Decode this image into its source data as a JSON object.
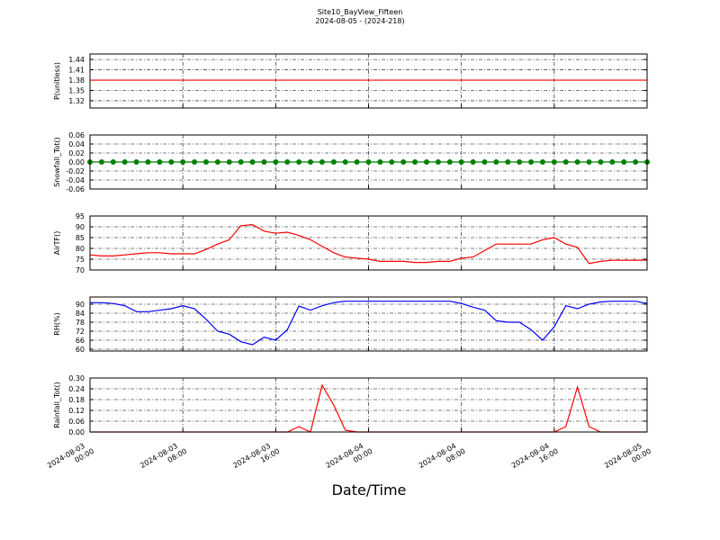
{
  "chart_data": {
    "type": "line",
    "title": "Site10_BayView_Fifteen",
    "subtitle": "2024-08-05 - (2024-218)",
    "xlabel": "Date/Time",
    "grid": true,
    "x": [
      "2024-08-03 00:00",
      "2024-08-03 01:00",
      "2024-08-03 02:00",
      "2024-08-03 03:00",
      "2024-08-03 04:00",
      "2024-08-03 05:00",
      "2024-08-03 06:00",
      "2024-08-03 07:00",
      "2024-08-03 08:00",
      "2024-08-03 09:00",
      "2024-08-03 10:00",
      "2024-08-03 11:00",
      "2024-08-03 12:00",
      "2024-08-03 13:00",
      "2024-08-03 14:00",
      "2024-08-03 15:00",
      "2024-08-03 16:00",
      "2024-08-03 17:00",
      "2024-08-03 18:00",
      "2024-08-03 19:00",
      "2024-08-03 20:00",
      "2024-08-03 21:00",
      "2024-08-03 22:00",
      "2024-08-03 23:00",
      "2024-08-04 00:00",
      "2024-08-04 01:00",
      "2024-08-04 02:00",
      "2024-08-04 03:00",
      "2024-08-04 04:00",
      "2024-08-04 05:00",
      "2024-08-04 06:00",
      "2024-08-04 07:00",
      "2024-08-04 08:00",
      "2024-08-04 09:00",
      "2024-08-04 10:00",
      "2024-08-04 11:00",
      "2024-08-04 12:00",
      "2024-08-04 13:00",
      "2024-08-04 14:00",
      "2024-08-04 15:00",
      "2024-08-04 16:00",
      "2024-08-04 17:00",
      "2024-08-04 18:00",
      "2024-08-04 19:00",
      "2024-08-04 20:00",
      "2024-08-04 21:00",
      "2024-08-04 22:00",
      "2024-08-04 23:00",
      "2024-08-05 00:00"
    ],
    "xlim": [
      "2024-08-03 00:00",
      "2024-08-05 00:00"
    ],
    "xticks": [
      "2024-08-03 00:00",
      "2024-08-03 08:00",
      "2024-08-03 16:00",
      "2024-08-04 00:00",
      "2024-08-04 08:00",
      "2024-08-04 16:00",
      "2024-08-05 00:00"
    ],
    "panels": [
      {
        "ylabel": "P(unitless)",
        "ylim": [
          1.299,
          1.456
        ],
        "yticks": [
          1.32,
          1.35,
          1.38,
          1.41,
          1.44
        ],
        "series": [
          {
            "color": "#ff0000",
            "values": [
              1.38,
              1.38,
              1.38,
              1.38,
              1.38,
              1.38,
              1.38,
              1.38,
              1.38,
              1.38,
              1.38,
              1.38,
              1.38,
              1.38,
              1.38,
              1.38,
              1.38,
              1.38,
              1.38,
              1.38,
              1.38,
              1.38,
              1.38,
              1.38,
              1.38,
              1.38,
              1.38,
              1.38,
              1.38,
              1.38,
              1.38,
              1.38,
              1.38,
              1.38,
              1.38,
              1.38,
              1.38,
              1.38,
              1.38,
              1.38,
              1.38,
              1.38,
              1.38,
              1.38,
              1.38,
              1.38,
              1.38,
              1.38,
              1.38
            ]
          }
        ]
      },
      {
        "ylabel": "Snowfall_Tot()",
        "ylim": [
          -0.06,
          0.06
        ],
        "yticks": [
          -0.06,
          -0.04,
          -0.02,
          {
            "value": 0,
            "label": "0.00"
          },
          0.02,
          0.04,
          0.06
        ],
        "series": [
          {
            "color": "#008000",
            "marker": true,
            "values": [
              0,
              0,
              0,
              0,
              0,
              0,
              0,
              0,
              0,
              0,
              0,
              0,
              0,
              0,
              0,
              0,
              0,
              0,
              0,
              0,
              0,
              0,
              0,
              0,
              0,
              0,
              0,
              0,
              0,
              0,
              0,
              0,
              0,
              0,
              0,
              0,
              0,
              0,
              0,
              0,
              0,
              0,
              0,
              0,
              0,
              0,
              0,
              0,
              0
            ]
          }
        ]
      },
      {
        "ylabel": "AirTF()",
        "ylim": [
          70,
          95
        ],
        "yticks": [
          70,
          75,
          80,
          85,
          90,
          95
        ],
        "series": [
          {
            "color": "#ff0000",
            "values": [
              77,
              76.5,
              76.5,
              77,
              77.5,
              78,
              78,
              77.5,
              77.5,
              77.5,
              79.5,
              82,
              84,
              90.5,
              91,
              88,
              87,
              87.5,
              86,
              84,
              81,
              78,
              76,
              75.5,
              75,
              74,
              74,
              74,
              73.5,
              73.5,
              74,
              74,
              75.5,
              76,
              79,
              82,
              82,
              82,
              82,
              84,
              85,
              82,
              80.5,
              73,
              74,
              74.5,
              74.5,
              74.5,
              74.5
            ]
          }
        ]
      },
      {
        "ylabel": "RH(%)",
        "ylim": [
          58.8,
          94.8
        ],
        "yticks": [
          60,
          66,
          72,
          78,
          84,
          90
        ],
        "series": [
          {
            "color": "#0000ff",
            "values": [
              91,
              91,
              90.5,
              89,
              85,
              85,
              86,
              87,
              89,
              87,
              80,
              72,
              70,
              65,
              63,
              68,
              66,
              73,
              88.8,
              86,
              89,
              91,
              92,
              92,
              92,
              92,
              92,
              92,
              92,
              92,
              92,
              92,
              90.5,
              88,
              86,
              79,
              78,
              78,
              73,
              66,
              75,
              89,
              87,
              90,
              91.5,
              92,
              92,
              92,
              90.5
            ]
          }
        ]
      },
      {
        "ylabel": "Rainfall_Tot()",
        "ylim": [
          0,
          0.3
        ],
        "yticks": [
          {
            "value": 0,
            "label": "0.00"
          },
          0.06,
          0.12,
          0.18,
          0.24,
          {
            "value": 0.3,
            "label": "0.30"
          }
        ],
        "series": [
          {
            "color": "#ff0000",
            "values": [
              0,
              0,
              0,
              0,
              0,
              0,
              0,
              0,
              0,
              0,
              0,
              0,
              0,
              0,
              0,
              0,
              0,
              0,
              0.03,
              0,
              0.26,
              0.15,
              0.01,
              0,
              0,
              0,
              0,
              0,
              0,
              0,
              0,
              0,
              0,
              0,
              0,
              0,
              0,
              0,
              0,
              0,
              0,
              0.03,
              0.25,
              0.03,
              0,
              0,
              0,
              0,
              0
            ]
          }
        ]
      }
    ]
  }
}
